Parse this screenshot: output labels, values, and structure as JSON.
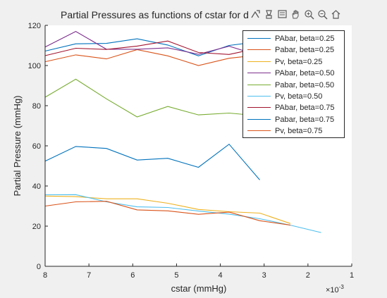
{
  "chart_data": {
    "type": "line",
    "title": "Partial Pressures as functions of cstar for d",
    "xlabel": "cstar (mmHg)",
    "ylabel": "Partial Pressure (mmHg)",
    "x_exponent_label": "×10",
    "x_exponent_power": "-3",
    "xlim": [
      0.008,
      0.001
    ],
    "x_reversed": true,
    "ylim": [
      0,
      120
    ],
    "xticks": [
      0.008,
      0.007,
      0.006,
      0.005,
      0.004,
      0.003,
      0.002,
      0.001
    ],
    "xtick_labels": [
      "8",
      "7",
      "6",
      "5",
      "4",
      "3",
      "2",
      "1"
    ],
    "yticks": [
      0,
      20,
      40,
      60,
      80,
      100,
      120
    ],
    "ytick_labels": [
      "0",
      "20",
      "40",
      "60",
      "80",
      "100",
      "120"
    ],
    "grid": false,
    "legend_placement": "top-right",
    "series": [
      {
        "name": "PAbar, beta=0.25",
        "color": "#0072BD",
        "x": [
          0.008,
          0.0073,
          0.0066,
          0.0059,
          0.0052,
          0.0045,
          0.0038,
          0.0031
        ],
        "y": [
          107.2,
          110.8,
          111,
          113.3,
          110.2,
          104.8,
          110,
          111.9
        ]
      },
      {
        "name": "Pabar, beta=0.25",
        "color": "#D95319",
        "x": [
          0.008,
          0.0073,
          0.0066,
          0.0059,
          0.0052,
          0.0045,
          0.0038,
          0.0031
        ],
        "y": [
          101.9,
          105.3,
          103.3,
          107.9,
          104.8,
          100,
          103.6,
          105.3
        ]
      },
      {
        "name": "Pv, beta=0.25",
        "color": "#EDB120",
        "x": [
          0.008,
          0.0073,
          0.0066,
          0.0059,
          0.0052,
          0.0045,
          0.0038,
          0.0031,
          0.0024
        ],
        "y": [
          35,
          34.7,
          33.6,
          33.6,
          31.4,
          28.3,
          27.2,
          26.5,
          21.3
        ]
      },
      {
        "name": "PAbar, beta=0.50",
        "color": "#7E2F8E",
        "x": [
          0.008,
          0.0073,
          0.0066,
          0.0059,
          0.0052,
          0.0045,
          0.0038,
          0.0031
        ],
        "y": [
          109.2,
          117,
          108.1,
          108.1,
          108.8,
          105.6,
          109.6,
          104.9
        ]
      },
      {
        "name": "Pabar, beta=0.50",
        "color": "#77AC30",
        "x": [
          0.008,
          0.0073,
          0.0066,
          0.0059,
          0.0052,
          0.0045,
          0.0038,
          0.0031
        ],
        "y": [
          84.2,
          93.2,
          83.4,
          74.4,
          79.6,
          75.4,
          76.3,
          74.9
        ]
      },
      {
        "name": "Pv, beta=0.50",
        "color": "#4DBEEE",
        "x": [
          0.008,
          0.0073,
          0.0066,
          0.0059,
          0.0052,
          0.0045,
          0.0038,
          0.0031,
          0.0024,
          0.0017
        ],
        "y": [
          35.6,
          35.7,
          32.1,
          29.6,
          29.3,
          27.5,
          26,
          23.7,
          20.5,
          16.8
        ]
      },
      {
        "name": "PAbar, beta=0.75",
        "color": "#A2142F",
        "x": [
          0.008,
          0.0073,
          0.0066,
          0.0059,
          0.0052,
          0.0045,
          0.0038,
          0.0031
        ],
        "y": [
          104.9,
          108.6,
          108,
          109.7,
          112.2,
          106.5,
          105.5,
          108.8
        ]
      },
      {
        "name": "Pabar, beta=0.75",
        "color": "#0072BD",
        "x": [
          0.008,
          0.0073,
          0.0066,
          0.0059,
          0.0052,
          0.0045,
          0.0038,
          0.0031
        ],
        "y": [
          52.4,
          59.7,
          58.7,
          52.9,
          53.8,
          49.3,
          60.8,
          43
        ]
      },
      {
        "name": "Pv, beta=0.75",
        "color": "#D95319",
        "x": [
          0.008,
          0.0073,
          0.0066,
          0.0059,
          0.0052,
          0.0045,
          0.0038,
          0.0031,
          0.0024
        ],
        "y": [
          30,
          32.1,
          32.4,
          28.1,
          27.6,
          25.9,
          27,
          22.7,
          20.5
        ]
      }
    ]
  }
}
